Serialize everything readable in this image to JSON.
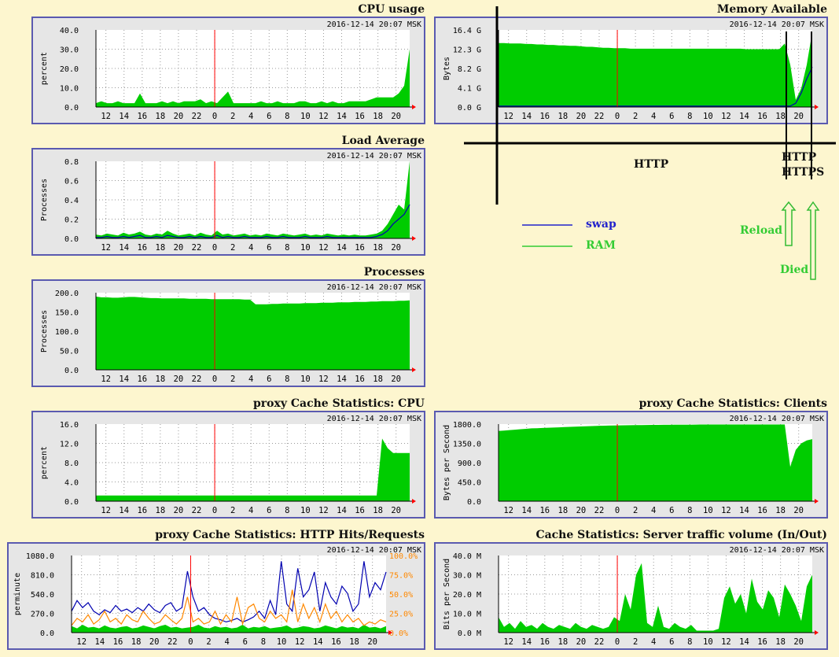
{
  "colors": {
    "area": "#00cc00",
    "line_blue": "#0000b0",
    "line_orange": "#ff8800",
    "now_marker": "#ff0000",
    "frame": "#5a5ab0",
    "annotation_green": "#33cc33",
    "annotation_blue": "#2222cc"
  },
  "timestamp": "2016-12-14 20:07 MSK",
  "x_ticks": [
    "12",
    "14",
    "16",
    "18",
    "20",
    "22",
    "0",
    "2",
    "4",
    "6",
    "8",
    "10",
    "12",
    "14",
    "16",
    "18",
    "20"
  ],
  "annotations": {
    "http_label": "HTTP",
    "http_https_label_1": "HTTP",
    "http_https_label_2": "HTTPS",
    "legend_swap": "swap",
    "legend_ram": "RAM",
    "reload": "Reload",
    "died": "Died"
  },
  "chart_data": [
    {
      "id": "cpu",
      "title": "CPU usage",
      "type": "area",
      "ylabel": "percent",
      "ylim": [
        0,
        40
      ],
      "yticks": [
        "40.0",
        "30.0",
        "20.0",
        "10.0",
        "0.0"
      ],
      "series": [
        {
          "values": [
            2,
            3,
            2,
            2,
            3,
            2,
            2,
            2,
            7,
            2,
            2,
            2,
            3,
            2,
            3,
            2,
            3,
            3,
            3,
            4,
            2,
            3,
            2,
            5,
            8,
            2,
            2,
            2,
            2,
            2,
            3,
            2,
            2,
            3,
            2,
            2,
            2,
            3,
            3,
            2,
            2,
            3,
            2,
            3,
            2,
            2,
            3,
            3,
            3,
            3,
            4,
            5,
            5,
            5,
            5,
            7,
            11,
            30
          ]
        }
      ]
    },
    {
      "id": "load",
      "title": "Load Average",
      "type": "area",
      "ylabel": "Processes",
      "ylim": [
        0,
        0.8
      ],
      "yticks": [
        "0.8",
        "0.6",
        "0.4",
        "0.2",
        "0.0"
      ],
      "series": [
        {
          "values": [
            0.04,
            0.03,
            0.05,
            0.04,
            0.03,
            0.06,
            0.04,
            0.05,
            0.07,
            0.04,
            0.03,
            0.05,
            0.04,
            0.08,
            0.05,
            0.03,
            0.04,
            0.05,
            0.03,
            0.06,
            0.04,
            0.03,
            0.08,
            0.04,
            0.05,
            0.03,
            0.04,
            0.05,
            0.03,
            0.04,
            0.03,
            0.05,
            0.04,
            0.03,
            0.05,
            0.04,
            0.03,
            0.04,
            0.05,
            0.03,
            0.04,
            0.03,
            0.05,
            0.04,
            0.03,
            0.04,
            0.03,
            0.04,
            0.03,
            0.03,
            0.04,
            0.05,
            0.08,
            0.15,
            0.25,
            0.35,
            0.3,
            0.8
          ]
        },
        {
          "values": [
            0.01,
            0.01,
            0.02,
            0.01,
            0.01,
            0.02,
            0.01,
            0.02,
            0.03,
            0.01,
            0.01,
            0.02,
            0.01,
            0.03,
            0.02,
            0.01,
            0.01,
            0.02,
            0.01,
            0.02,
            0.01,
            0.01,
            0.03,
            0.01,
            0.02,
            0.01,
            0.01,
            0.02,
            0.01,
            0.01,
            0.01,
            0.02,
            0.01,
            0.01,
            0.02,
            0.01,
            0.01,
            0.01,
            0.02,
            0.01,
            0.01,
            0.01,
            0.02,
            0.01,
            0.01,
            0.01,
            0.01,
            0.01,
            0.01,
            0.01,
            0.01,
            0.02,
            0.04,
            0.08,
            0.15,
            0.2,
            0.25,
            0.35
          ]
        }
      ]
    },
    {
      "id": "proc",
      "title": "Processes",
      "type": "area",
      "ylabel": "Processes",
      "ylim": [
        0,
        200
      ],
      "yticks": [
        "200.0",
        "150.0",
        "100.0",
        "50.0",
        "0.0"
      ],
      "series": [
        {
          "values": [
            190,
            188,
            188,
            187,
            187,
            188,
            189,
            189,
            188,
            187,
            186,
            186,
            185,
            185,
            185,
            185,
            185,
            184,
            184,
            184,
            184,
            183,
            183,
            183,
            183,
            183,
            183,
            182,
            182,
            170,
            170,
            170,
            171,
            171,
            172,
            172,
            172,
            172,
            173,
            173,
            173,
            174,
            174,
            174,
            175,
            175,
            175,
            176,
            176,
            176,
            177,
            177,
            178,
            178,
            178,
            179,
            179,
            180
          ]
        }
      ]
    },
    {
      "id": "mem",
      "title": "Memory Available",
      "type": "area",
      "ylabel": "Bytes",
      "ylim": [
        0,
        16.4
      ],
      "yticks": [
        "16.4 G",
        "12.3 G",
        "8.2 G",
        "4.1 G",
        "0.0 G"
      ],
      "series": [
        {
          "name": "RAM",
          "values": [
            13.6,
            13.6,
            13.5,
            13.5,
            13.5,
            13.4,
            13.4,
            13.3,
            13.3,
            13.2,
            13.2,
            13.1,
            13.1,
            13.0,
            13.0,
            12.9,
            12.8,
            12.8,
            12.7,
            12.6,
            12.6,
            12.5,
            12.5,
            12.5,
            12.4,
            12.4,
            12.4,
            12.4,
            12.4,
            12.4,
            12.4,
            12.4,
            12.4,
            12.4,
            12.4,
            12.4,
            12.4,
            12.4,
            12.4,
            12.4,
            12.4,
            12.4,
            12.4,
            12.4,
            12.4,
            12.3,
            12.3,
            12.3,
            12.3,
            12.3,
            12.3,
            12.3,
            13.5,
            9,
            1.5,
            4,
            9,
            16
          ]
        },
        {
          "name": "swap",
          "values": [
            0.2,
            0.2,
            0.2,
            0.2,
            0.2,
            0.2,
            0.2,
            0.2,
            0.2,
            0.2,
            0.2,
            0.2,
            0.2,
            0.2,
            0.2,
            0.2,
            0.2,
            0.2,
            0.2,
            0.2,
            0.2,
            0.2,
            0.2,
            0.2,
            0.2,
            0.2,
            0.2,
            0.2,
            0.2,
            0.2,
            0.2,
            0.2,
            0.2,
            0.2,
            0.2,
            0.2,
            0.2,
            0.2,
            0.2,
            0.2,
            0.2,
            0.2,
            0.2,
            0.2,
            0.2,
            0.2,
            0.2,
            0.2,
            0.2,
            0.2,
            0.2,
            0.2,
            0.2,
            0.2,
            0.8,
            3,
            6,
            8.5
          ]
        }
      ]
    },
    {
      "id": "pcpu",
      "title": "proxy Cache Statistics: CPU",
      "type": "area",
      "ylabel": "percent",
      "ylim": [
        0,
        16
      ],
      "yticks": [
        "16.0",
        "12.0",
        "8.0",
        "4.0",
        "0.0"
      ],
      "series": [
        {
          "values": [
            1.2,
            1.2,
            1.2,
            1.2,
            1.2,
            1.2,
            1.2,
            1.2,
            1.2,
            1.2,
            1.2,
            1.2,
            1.2,
            1.2,
            1.2,
            1.2,
            1.2,
            1.2,
            1.2,
            1.2,
            1.2,
            1.2,
            1.2,
            1.2,
            1.2,
            1.2,
            1.2,
            1.2,
            1.2,
            1.2,
            1.2,
            1.2,
            1.2,
            1.2,
            1.2,
            1.2,
            1.2,
            1.2,
            1.2,
            1.2,
            1.2,
            1.2,
            1.2,
            1.2,
            1.2,
            1.2,
            1.2,
            1.2,
            1.2,
            1.2,
            1.2,
            1.2,
            13,
            11,
            10,
            10,
            10,
            10
          ]
        }
      ]
    },
    {
      "id": "clients",
      "title": "proxy Cache Statistics: Clients",
      "type": "area",
      "ylabel": "Bytes per Second",
      "ylim": [
        0,
        1800
      ],
      "yticks": [
        "1800.0",
        "1350.0",
        "900.0",
        "450.0",
        "0.0"
      ],
      "series": [
        {
          "values": [
            1640,
            1650,
            1660,
            1670,
            1680,
            1690,
            1700,
            1705,
            1710,
            1715,
            1720,
            1725,
            1730,
            1735,
            1740,
            1745,
            1750,
            1755,
            1760,
            1762,
            1765,
            1768,
            1770,
            1772,
            1775,
            1777,
            1778,
            1780,
            1781,
            1782,
            1783,
            1784,
            1785,
            1786,
            1787,
            1788,
            1789,
            1790,
            1790,
            1790,
            1790,
            1790,
            1790,
            1790,
            1790,
            1790,
            1790,
            1790,
            1790,
            1790,
            1790,
            1790,
            1790,
            800,
            1200,
            1350,
            1420,
            1450
          ]
        }
      ]
    },
    {
      "id": "hits",
      "title": "proxy Cache Statistics: HTTP Hits/Requests",
      "type": "line",
      "ylabel": "perminute",
      "ylim": [
        0,
        1080
      ],
      "yticks": [
        "1080.0",
        "810.0",
        "540.0",
        "270.0",
        "0.0"
      ],
      "y2ticks": [
        "100.0%",
        "75.0%",
        "50.0%",
        "25.0%",
        "0.0%"
      ],
      "series": [
        {
          "name": "area",
          "values": [
            90,
            60,
            110,
            70,
            80,
            60,
            100,
            70,
            60,
            80,
            90,
            60,
            70,
            100,
            80,
            60,
            90,
            110,
            70,
            80,
            60,
            70,
            80,
            110,
            70,
            60,
            90,
            70,
            80,
            60,
            70,
            110,
            60,
            80,
            70,
            90,
            60,
            70,
            80,
            100,
            60,
            70,
            90,
            80,
            60,
            70,
            100,
            80,
            60,
            90,
            70,
            80,
            60,
            110,
            70,
            80,
            60,
            90
          ]
        },
        {
          "name": "blue",
          "values": [
            300,
            450,
            350,
            420,
            300,
            250,
            320,
            280,
            380,
            300,
            330,
            280,
            350,
            300,
            400,
            320,
            280,
            380,
            420,
            300,
            350,
            860,
            500,
            300,
            350,
            250,
            200,
            180,
            150,
            170,
            200,
            150,
            180,
            220,
            300,
            200,
            450,
            250,
            1000,
            400,
            300,
            900,
            500,
            600,
            850,
            300,
            700,
            500,
            400,
            650,
            550,
            300,
            400,
            1000,
            500,
            700,
            600,
            850
          ]
        },
        {
          "name": "orange",
          "values": [
            100,
            200,
            150,
            250,
            120,
            180,
            300,
            150,
            200,
            120,
            250,
            180,
            150,
            300,
            200,
            120,
            150,
            250,
            180,
            120,
            200,
            500,
            150,
            200,
            120,
            150,
            300,
            120,
            250,
            150,
            500,
            120,
            350,
            400,
            200,
            150,
            300,
            200,
            250,
            150,
            600,
            150,
            400,
            200,
            350,
            150,
            400,
            200,
            300,
            150,
            250,
            150,
            200,
            100,
            150,
            120,
            180,
            150
          ]
        }
      ]
    },
    {
      "id": "traffic",
      "title": "Cache Statistics: Server traffic volume (In/Out)",
      "type": "area",
      "ylabel": "Bits per Second",
      "ylim": [
        0,
        40
      ],
      "yticks": [
        "40.0 M",
        "30.0 M",
        "20.0 M",
        "10.0 M",
        "0.0 M"
      ],
      "series": [
        {
          "values": [
            8,
            3,
            5,
            2,
            6,
            3,
            4,
            2,
            5,
            3,
            2,
            4,
            3,
            2,
            5,
            3,
            2,
            4,
            3,
            2,
            3,
            8,
            6,
            20,
            12,
            30,
            36,
            5,
            3,
            14,
            3,
            2,
            5,
            3,
            2,
            4,
            1,
            1,
            1,
            1,
            2,
            18,
            24,
            15,
            20,
            10,
            28,
            16,
            12,
            22,
            18,
            8,
            25,
            20,
            14,
            6,
            24,
            30
          ]
        }
      ]
    }
  ]
}
